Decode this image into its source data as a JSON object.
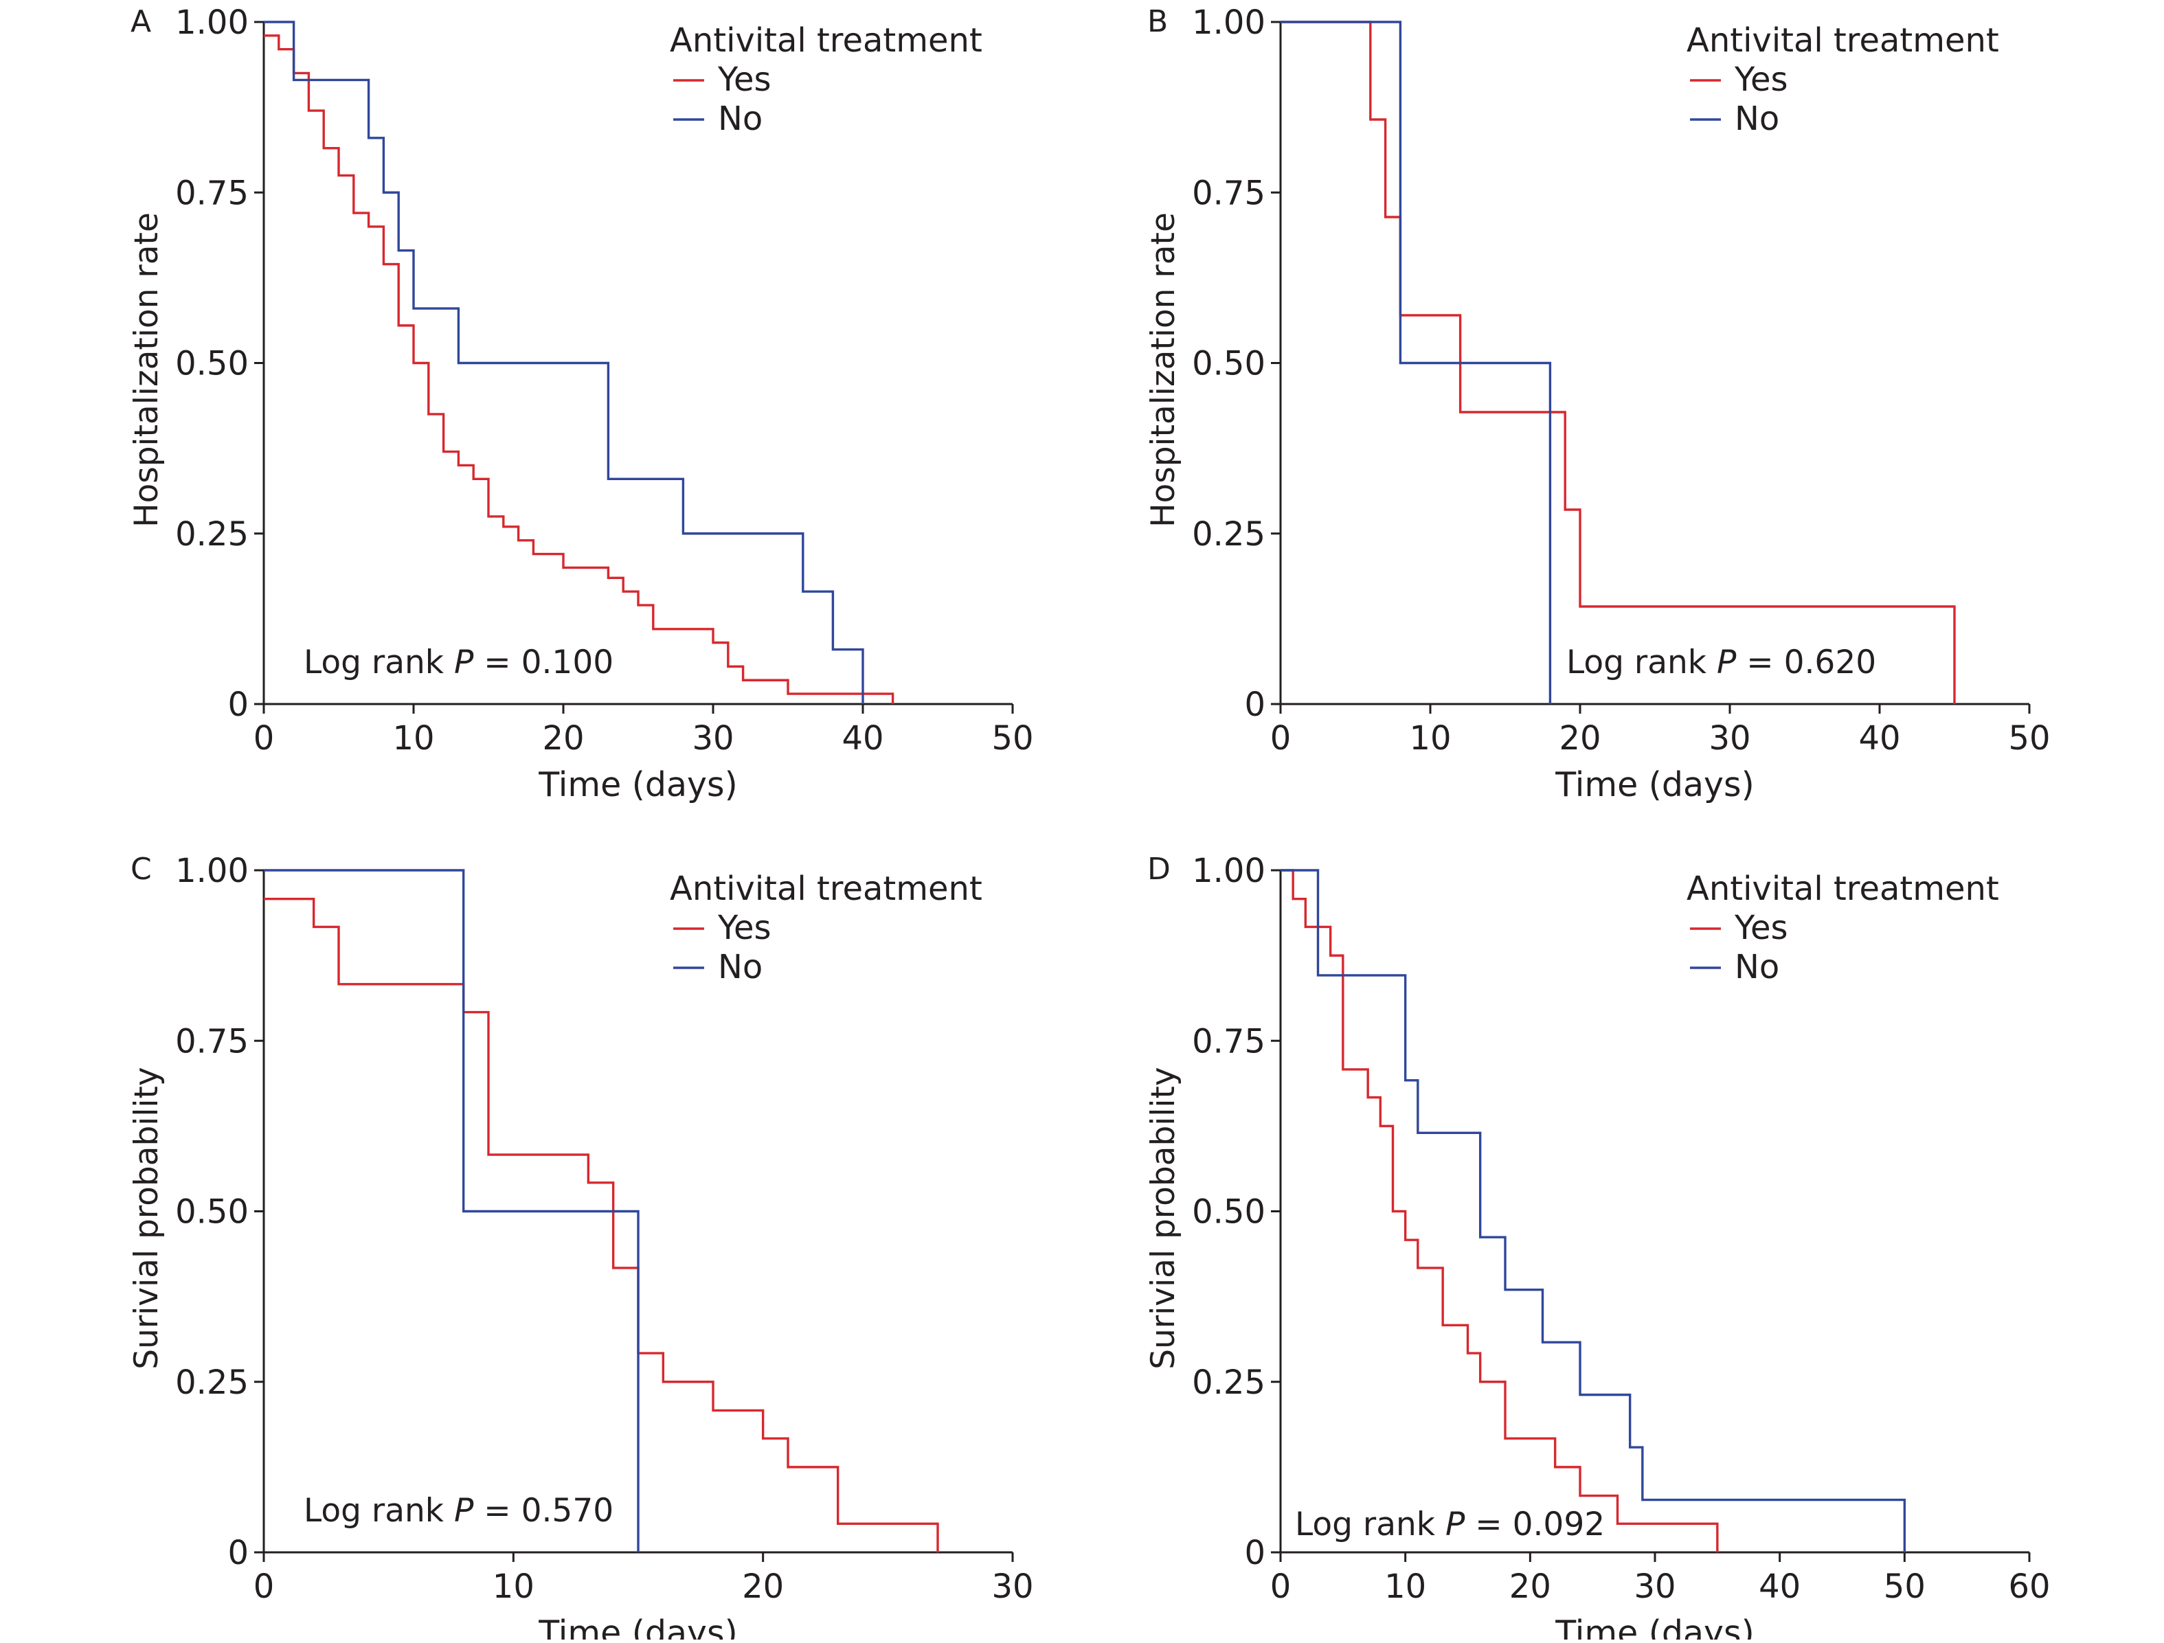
{
  "colors": {
    "yes": "#d7282f",
    "no": "#30479b",
    "axis": "#231f20"
  },
  "chart_data": [
    {
      "panel": "A",
      "type": "line",
      "ylabel": "Hospitalization rate",
      "xlabel": "Time (days)",
      "xlim": [
        0,
        50
      ],
      "ylim": [
        0,
        1
      ],
      "xticks": [
        0,
        10,
        20,
        30,
        40,
        50
      ],
      "yticks": [
        0,
        0.25,
        0.5,
        0.75,
        1.0
      ],
      "ytick_labels": [
        "0",
        "0.25",
        "0.50",
        "0.75",
        "1.00"
      ],
      "legend_title": "Antivital treatment",
      "legend_position": "top-right",
      "annotation": {
        "prefix": "Log rank ",
        "italic": "P",
        "suffix": " = 0.100"
      },
      "series": [
        {
          "name": "Yes",
          "color": "yes",
          "steps": [
            [
              0,
              0.98
            ],
            [
              1,
              0.96
            ],
            [
              2,
              0.925
            ],
            [
              3,
              0.87
            ],
            [
              4,
              0.815
            ],
            [
              5,
              0.775
            ],
            [
              6,
              0.72
            ],
            [
              7,
              0.7
            ],
            [
              8,
              0.645
            ],
            [
              9,
              0.555
            ],
            [
              10,
              0.5
            ],
            [
              11,
              0.425
            ],
            [
              12,
              0.37
            ],
            [
              13,
              0.35
            ],
            [
              14,
              0.33
            ],
            [
              15,
              0.275
            ],
            [
              16,
              0.26
            ],
            [
              17,
              0.24
            ],
            [
              18,
              0.22
            ],
            [
              20,
              0.2
            ],
            [
              23,
              0.185
            ],
            [
              24,
              0.165
            ],
            [
              25,
              0.145
            ],
            [
              26,
              0.11
            ],
            [
              30,
              0.09
            ],
            [
              31,
              0.055
            ],
            [
              32,
              0.035
            ],
            [
              35,
              0.015
            ],
            [
              42,
              0
            ]
          ]
        },
        {
          "name": "No",
          "color": "no",
          "steps": [
            [
              0,
              1.0
            ],
            [
              2,
              0.915
            ],
            [
              7,
              0.83
            ],
            [
              8,
              0.75
            ],
            [
              9,
              0.665
            ],
            [
              10,
              0.58
            ],
            [
              13,
              0.5
            ],
            [
              23,
              0.33
            ],
            [
              28,
              0.25
            ],
            [
              36,
              0.165
            ],
            [
              38,
              0.08
            ],
            [
              40,
              0
            ]
          ]
        }
      ]
    },
    {
      "panel": "B",
      "type": "line",
      "ylabel": "Hospitalization rate",
      "xlabel": "Time (days)",
      "xlim": [
        0,
        50
      ],
      "ylim": [
        0,
        1
      ],
      "xticks": [
        0,
        10,
        20,
        30,
        40,
        50
      ],
      "yticks": [
        0,
        0.25,
        0.5,
        0.75,
        1.0
      ],
      "ytick_labels": [
        "0",
        "0.25",
        "0.50",
        "0.75",
        "1.00"
      ],
      "legend_title": "Antivital treatment",
      "legend_position": "top-right",
      "annotation": {
        "prefix": "Log rank ",
        "italic": "P",
        "suffix": " = 0.620"
      },
      "series": [
        {
          "name": "Yes",
          "color": "yes",
          "steps": [
            [
              0,
              1.0
            ],
            [
              6,
              0.857
            ],
            [
              7,
              0.714
            ],
            [
              8,
              0.57
            ],
            [
              12,
              0.428
            ],
            [
              19,
              0.285
            ],
            [
              20,
              0.143
            ],
            [
              45,
              0
            ]
          ]
        },
        {
          "name": "No",
          "color": "no",
          "steps": [
            [
              0,
              1.0
            ],
            [
              8,
              0.5
            ],
            [
              18,
              0
            ]
          ]
        }
      ]
    },
    {
      "panel": "C",
      "type": "line",
      "ylabel": "Surivial probability",
      "xlabel": "Time (days)",
      "xlim": [
        0,
        30
      ],
      "ylim": [
        0,
        1
      ],
      "xticks": [
        0,
        10,
        20,
        30
      ],
      "yticks": [
        0,
        0.25,
        0.5,
        0.75,
        1.0
      ],
      "ytick_labels": [
        "0",
        "0.25",
        "0.50",
        "0.75",
        "1.00"
      ],
      "legend_title": "Antivital treatment",
      "legend_position": "top-right",
      "annotation": {
        "prefix": "Log rank ",
        "italic": "P",
        "suffix": " = 0.570"
      },
      "series": [
        {
          "name": "Yes",
          "color": "yes",
          "steps": [
            [
              0,
              0.958
            ],
            [
              2,
              0.917
            ],
            [
              3,
              0.833
            ],
            [
              8,
              0.792
            ],
            [
              9,
              0.583
            ],
            [
              13,
              0.542
            ],
            [
              14,
              0.417
            ],
            [
              15,
              0.292
            ],
            [
              16,
              0.25
            ],
            [
              18,
              0.208
            ],
            [
              20,
              0.167
            ],
            [
              21,
              0.125
            ],
            [
              23,
              0.042
            ],
            [
              27,
              0
            ]
          ]
        },
        {
          "name": "No",
          "color": "no",
          "steps": [
            [
              0,
              1.0
            ],
            [
              8,
              0.5
            ],
            [
              15,
              0
            ]
          ]
        }
      ]
    },
    {
      "panel": "D",
      "type": "line",
      "ylabel": "Surivial probability",
      "xlabel": "Time (days)",
      "xlim": [
        0,
        60
      ],
      "ylim": [
        0,
        1
      ],
      "xticks": [
        0,
        10,
        20,
        30,
        40,
        50,
        60
      ],
      "yticks": [
        0,
        0.25,
        0.5,
        0.75,
        1.0
      ],
      "ytick_labels": [
        "0",
        "0.25",
        "0.50",
        "0.75",
        "1.00"
      ],
      "legend_title": "Antivital treatment",
      "legend_position": "top-right",
      "annotation": {
        "prefix": "Log rank ",
        "italic": "P",
        "suffix": " = 0.092"
      },
      "series": [
        {
          "name": "Yes",
          "color": "yes",
          "steps": [
            [
              0,
              1.0
            ],
            [
              1,
              0.958
            ],
            [
              2,
              0.917
            ],
            [
              4,
              0.875
            ],
            [
              5,
              0.708
            ],
            [
              7,
              0.667
            ],
            [
              8,
              0.625
            ],
            [
              9,
              0.5
            ],
            [
              10,
              0.458
            ],
            [
              11,
              0.417
            ],
            [
              13,
              0.333
            ],
            [
              15,
              0.292
            ],
            [
              16,
              0.25
            ],
            [
              18,
              0.167
            ],
            [
              22,
              0.125
            ],
            [
              24,
              0.083
            ],
            [
              27,
              0.042
            ],
            [
              35,
              0
            ]
          ]
        },
        {
          "name": "No",
          "color": "no",
          "steps": [
            [
              0,
              1.0
            ],
            [
              3,
              0.846
            ],
            [
              10,
              0.692
            ],
            [
              11,
              0.615
            ],
            [
              16,
              0.462
            ],
            [
              18,
              0.385
            ],
            [
              21,
              0.308
            ],
            [
              24,
              0.231
            ],
            [
              28,
              0.154
            ],
            [
              29,
              0.077
            ],
            [
              50,
              0
            ]
          ]
        }
      ]
    }
  ]
}
